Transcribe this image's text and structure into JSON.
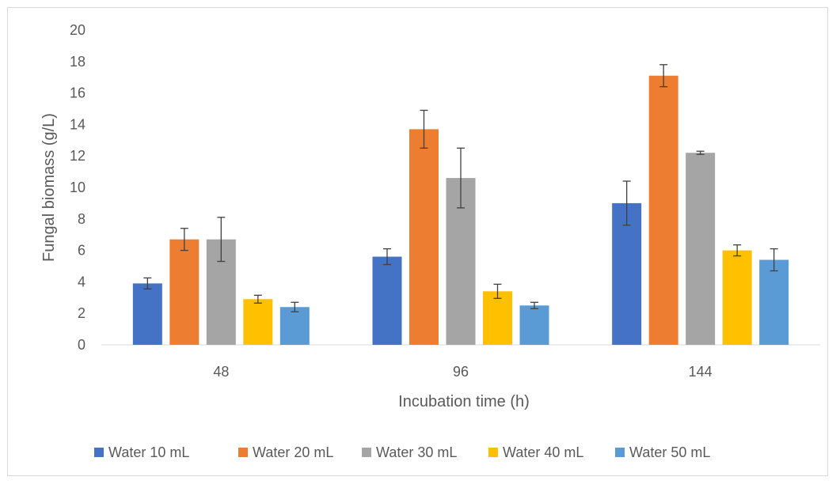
{
  "chart_data": {
    "type": "bar",
    "title": "",
    "xlabel": "Incubation time (h)",
    "ylabel": "Fungal biomass (g/L)",
    "categories": [
      "48",
      "96",
      "144"
    ],
    "ylim": [
      0,
      20
    ],
    "yticks": [
      0,
      2,
      4,
      6,
      8,
      10,
      12,
      14,
      16,
      18,
      20
    ],
    "grid": false,
    "legend_position": "bottom",
    "series": [
      {
        "name": "Water 10 mL",
        "color": "#4472c4",
        "values": [
          3.9,
          5.6,
          9.0
        ],
        "errors": [
          0.35,
          0.5,
          1.4
        ]
      },
      {
        "name": "Water 20 mL",
        "color": "#ed7d31",
        "values": [
          6.7,
          13.7,
          17.1
        ],
        "errors": [
          0.7,
          1.2,
          0.7
        ]
      },
      {
        "name": "Water 30 mL",
        "color": "#a5a5a5",
        "values": [
          6.7,
          10.6,
          12.2
        ],
        "errors": [
          1.4,
          1.9,
          0.1
        ]
      },
      {
        "name": "Water 40 mL",
        "color": "#ffc000",
        "values": [
          2.9,
          3.4,
          6.0
        ],
        "errors": [
          0.25,
          0.45,
          0.35
        ]
      },
      {
        "name": "Water 50 mL",
        "color": "#5b9bd5",
        "values": [
          2.4,
          2.5,
          5.4
        ],
        "errors": [
          0.3,
          0.2,
          0.7
        ]
      }
    ]
  }
}
